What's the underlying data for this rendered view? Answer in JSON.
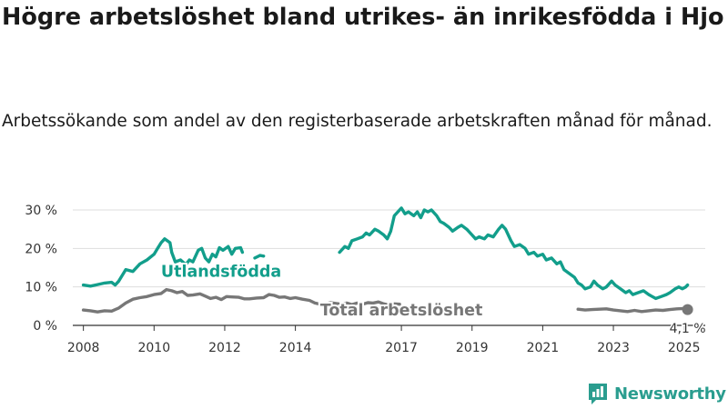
{
  "title": "Högre arbetslöshet bland utrikes- än inrikesfödda i Hjo",
  "subtitle": "Arbetssökande som andel av den registerbaserade arbetskraften månad för månad.",
  "logo_text": "Newsworthy",
  "colors": {
    "foreign": "#129e8b",
    "total": "#777777",
    "grid": "#dddddd",
    "logo": "#2a9d8f"
  },
  "chart_data": {
    "type": "line",
    "title": "Högre arbetslöshet bland utrikes- än inrikesfödda i Hjo",
    "subtitle": "Arbetssökande som andel av den registerbaserade arbetskraften månad för månad.",
    "xlabel": "",
    "ylabel": "",
    "xlim": [
      2007.7,
      2025.6
    ],
    "ylim": [
      0,
      30
    ],
    "x_ticks": [
      2008,
      2010,
      2012,
      2014,
      2017,
      2019,
      2021,
      2023,
      2025
    ],
    "x_tick_labels": [
      "2008",
      "2010",
      "2012",
      "2014",
      "2017",
      "2019",
      "2021",
      "2023",
      "2025"
    ],
    "y_ticks": [
      0,
      10,
      20,
      30
    ],
    "y_tick_labels": [
      "0 %",
      "10 %",
      "20 %",
      "30 %"
    ],
    "grid": true,
    "series": [
      {
        "name": "Utlandsfödda",
        "color": "#129e8b",
        "segments": [
          [
            [
              2008.0,
              10.5
            ],
            [
              2008.2,
              10.2
            ],
            [
              2008.4,
              10.6
            ],
            [
              2008.6,
              11.0
            ],
            [
              2008.8,
              11.2
            ],
            [
              2008.9,
              10.5
            ],
            [
              2009.0,
              11.5
            ],
            [
              2009.2,
              14.5
            ],
            [
              2009.4,
              14.0
            ],
            [
              2009.6,
              16.0
            ],
            [
              2009.8,
              17.0
            ],
            [
              2010.0,
              18.5
            ],
            [
              2010.1,
              20.0
            ],
            [
              2010.2,
              21.5
            ],
            [
              2010.3,
              22.5
            ],
            [
              2010.45,
              21.5
            ],
            [
              2010.5,
              19.0
            ],
            [
              2010.6,
              16.5
            ],
            [
              2010.75,
              17.0
            ],
            [
              2010.9,
              15.8
            ],
            [
              2011.0,
              17.0
            ],
            [
              2011.1,
              16.5
            ],
            [
              2011.25,
              19.5
            ],
            [
              2011.35,
              20.0
            ],
            [
              2011.45,
              17.5
            ],
            [
              2011.55,
              16.5
            ],
            [
              2011.65,
              18.5
            ],
            [
              2011.75,
              17.8
            ],
            [
              2011.85,
              20.2
            ],
            [
              2011.95,
              19.5
            ],
            [
              2012.1,
              20.5
            ],
            [
              2012.2,
              18.5
            ],
            [
              2012.3,
              20.0
            ],
            [
              2012.45,
              20.2
            ],
            [
              2012.5,
              19.0
            ]
          ],
          [
            [
              2012.85,
              17.5
            ],
            [
              2013.0,
              18.2
            ],
            [
              2013.1,
              18.0
            ]
          ],
          [
            [
              2015.25,
              19.0
            ],
            [
              2015.4,
              20.5
            ],
            [
              2015.5,
              20.0
            ],
            [
              2015.6,
              22.0
            ],
            [
              2015.75,
              22.5
            ],
            [
              2015.9,
              23.0
            ],
            [
              2016.0,
              24.0
            ],
            [
              2016.1,
              23.5
            ],
            [
              2016.25,
              25.0
            ],
            [
              2016.35,
              24.5
            ],
            [
              2016.5,
              23.5
            ],
            [
              2016.6,
              22.5
            ],
            [
              2016.7,
              24.5
            ],
            [
              2016.8,
              28.5
            ],
            [
              2016.9,
              29.5
            ],
            [
              2017.0,
              30.5
            ],
            [
              2017.1,
              29.0
            ],
            [
              2017.2,
              29.5
            ],
            [
              2017.35,
              28.5
            ],
            [
              2017.45,
              29.5
            ],
            [
              2017.55,
              28.0
            ],
            [
              2017.65,
              30.0
            ],
            [
              2017.75,
              29.5
            ],
            [
              2017.85,
              30.0
            ],
            [
              2018.0,
              28.5
            ],
            [
              2018.1,
              27.0
            ],
            [
              2018.2,
              26.5
            ],
            [
              2018.35,
              25.5
            ],
            [
              2018.45,
              24.5
            ],
            [
              2018.6,
              25.5
            ],
            [
              2018.7,
              26.0
            ],
            [
              2018.85,
              25.0
            ],
            [
              2019.0,
              23.5
            ],
            [
              2019.1,
              22.5
            ],
            [
              2019.2,
              23.0
            ],
            [
              2019.35,
              22.5
            ],
            [
              2019.45,
              23.5
            ],
            [
              2019.6,
              23.0
            ],
            [
              2019.75,
              25.0
            ],
            [
              2019.85,
              26.0
            ],
            [
              2019.95,
              25.0
            ],
            [
              2020.1,
              22.0
            ],
            [
              2020.2,
              20.5
            ],
            [
              2020.35,
              21.0
            ],
            [
              2020.5,
              20.0
            ],
            [
              2020.6,
              18.5
            ],
            [
              2020.75,
              19.0
            ],
            [
              2020.85,
              18.0
            ],
            [
              2021.0,
              18.5
            ],
            [
              2021.1,
              17.0
            ],
            [
              2021.25,
              17.5
            ],
            [
              2021.4,
              16.0
            ],
            [
              2021.5,
              16.5
            ],
            [
              2021.6,
              14.5
            ],
            [
              2021.75,
              13.5
            ],
            [
              2021.9,
              12.5
            ],
            [
              2022.0,
              11.0
            ],
            [
              2022.1,
              10.5
            ],
            [
              2022.2,
              9.5
            ],
            [
              2022.35,
              10.0
            ],
            [
              2022.45,
              11.5
            ],
            [
              2022.55,
              10.5
            ],
            [
              2022.7,
              9.5
            ],
            [
              2022.8,
              10.0
            ],
            [
              2022.95,
              11.5
            ],
            [
              2023.05,
              10.5
            ],
            [
              2023.2,
              9.5
            ],
            [
              2023.35,
              8.5
            ],
            [
              2023.45,
              9.0
            ],
            [
              2023.55,
              8.0
            ],
            [
              2023.7,
              8.5
            ],
            [
              2023.85,
              9.0
            ],
            [
              2024.0,
              8.0
            ],
            [
              2024.1,
              7.5
            ],
            [
              2024.2,
              7.0
            ],
            [
              2024.35,
              7.5
            ],
            [
              2024.5,
              8.0
            ],
            [
              2024.6,
              8.5
            ],
            [
              2024.75,
              9.5
            ],
            [
              2024.85,
              10.0
            ],
            [
              2024.95,
              9.5
            ],
            [
              2025.05,
              10.0
            ],
            [
              2025.1,
              10.5
            ]
          ]
        ]
      },
      {
        "name": "Total arbetslöshet",
        "color": "#777777",
        "segments": [
          [
            [
              2008.0,
              4.0
            ],
            [
              2008.2,
              3.8
            ],
            [
              2008.4,
              3.5
            ],
            [
              2008.6,
              3.8
            ],
            [
              2008.8,
              3.7
            ],
            [
              2009.0,
              4.5
            ],
            [
              2009.2,
              5.8
            ],
            [
              2009.4,
              6.8
            ],
            [
              2009.6,
              7.2
            ],
            [
              2009.8,
              7.5
            ],
            [
              2010.0,
              8.0
            ],
            [
              2010.2,
              8.3
            ],
            [
              2010.35,
              9.3
            ],
            [
              2010.5,
              9.0
            ],
            [
              2010.65,
              8.5
            ],
            [
              2010.8,
              8.8
            ],
            [
              2010.95,
              7.8
            ],
            [
              2011.1,
              7.9
            ],
            [
              2011.3,
              8.2
            ],
            [
              2011.45,
              7.6
            ],
            [
              2011.6,
              7.0
            ],
            [
              2011.75,
              7.3
            ],
            [
              2011.9,
              6.7
            ],
            [
              2012.05,
              7.5
            ],
            [
              2012.2,
              7.4
            ],
            [
              2012.4,
              7.3
            ],
            [
              2012.55,
              6.9
            ],
            [
              2012.7,
              6.9
            ],
            [
              2012.9,
              7.1
            ],
            [
              2013.1,
              7.2
            ],
            [
              2013.25,
              8.0
            ],
            [
              2013.4,
              7.8
            ],
            [
              2013.55,
              7.3
            ],
            [
              2013.7,
              7.4
            ],
            [
              2013.85,
              7.0
            ],
            [
              2014.0,
              7.2
            ],
            [
              2014.2,
              6.8
            ],
            [
              2014.4,
              6.5
            ],
            [
              2014.55,
              5.8
            ],
            [
              2014.7,
              5.5
            ],
            [
              2014.85,
              5.6
            ],
            [
              2015.0,
              5.9
            ],
            [
              2015.15,
              5.7
            ],
            [
              2015.3,
              5.5
            ],
            [
              2015.45,
              5.8
            ],
            [
              2015.6,
              5.4
            ],
            [
              2015.75,
              5.8
            ],
            [
              2015.9,
              5.5
            ],
            [
              2016.05,
              5.9
            ],
            [
              2016.2,
              5.8
            ],
            [
              2016.35,
              6.1
            ],
            [
              2016.5,
              5.6
            ],
            [
              2016.65,
              5.3
            ],
            [
              2016.8,
              5.6
            ],
            [
              2016.95,
              5.5
            ]
          ],
          [
            [
              2022.0,
              4.2
            ],
            [
              2022.2,
              4.0
            ],
            [
              2022.4,
              4.1
            ],
            [
              2022.6,
              4.2
            ],
            [
              2022.8,
              4.3
            ],
            [
              2023.0,
              4.0
            ],
            [
              2023.2,
              3.8
            ],
            [
              2023.4,
              3.6
            ],
            [
              2023.6,
              3.9
            ],
            [
              2023.8,
              3.6
            ],
            [
              2024.0,
              3.8
            ],
            [
              2024.2,
              4.0
            ],
            [
              2024.4,
              3.9
            ],
            [
              2024.6,
              4.1
            ],
            [
              2024.8,
              4.3
            ],
            [
              2025.0,
              4.4
            ],
            [
              2025.1,
              4.1
            ]
          ]
        ]
      }
    ],
    "labels": [
      {
        "series": "Utlandsfödda",
        "text": "Utlandsfödda",
        "x": 2011.9,
        "y": 14.0
      },
      {
        "series": "Total arbetslöshet",
        "text": "Total arbetslöshet",
        "x": 2017.0,
        "y": 4.0
      }
    ],
    "end_point": {
      "series": "Total arbetslöshet",
      "x": 2025.1,
      "y": 4.1,
      "label": "4,1 %"
    }
  }
}
